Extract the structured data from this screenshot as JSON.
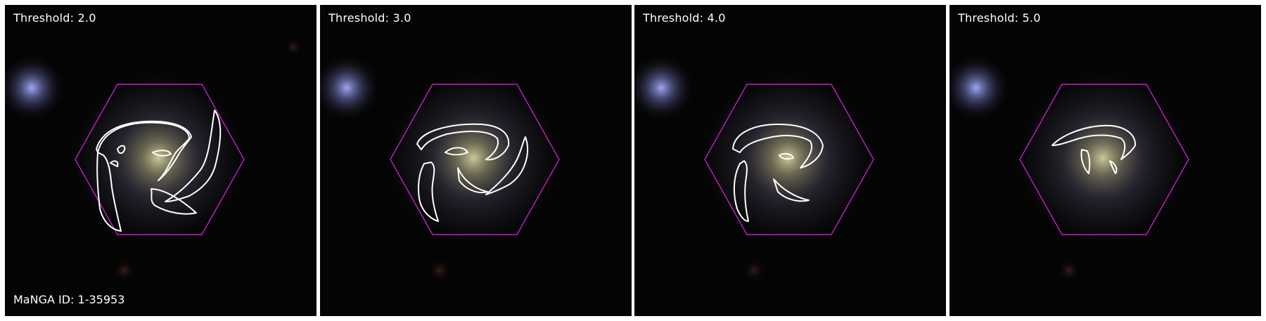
{
  "figure": {
    "panels": [
      {
        "label": "Threshold: 2.0"
      },
      {
        "label": "Threshold: 3.0"
      },
      {
        "label": "Threshold: 4.0"
      },
      {
        "label": "Threshold: 5.0"
      }
    ],
    "galaxy_id_label": "MaNGA ID: 1-35953",
    "colors": {
      "background": "#050404",
      "hexagon": "#c21fc8",
      "contours": "#ffffff",
      "text": "#ffffff",
      "separator": "#ffffff"
    }
  }
}
